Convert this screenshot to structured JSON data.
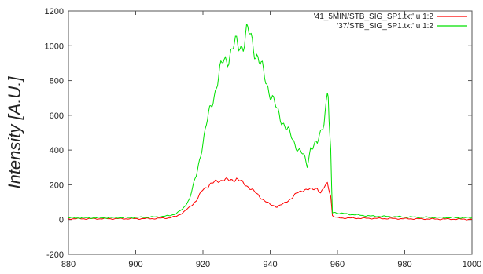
{
  "chart_data": {
    "type": "line",
    "title": "",
    "xlabel": "",
    "ylabel": "Intensity  [A.U.]",
    "xlim": [
      880,
      1000
    ],
    "ylim": [
      -200,
      1200
    ],
    "xticks": [
      "880",
      "900",
      "920",
      "940",
      "960",
      "980",
      "1000"
    ],
    "yticks": [
      "-200",
      "0",
      "200",
      "400",
      "600",
      "800",
      "1000",
      "1200"
    ],
    "legend_position": "top-right",
    "grid": false,
    "series": [
      {
        "name": "'41_5MIN/STB_SIG_SP1.txt' u 1:2",
        "color": "#ff0000",
        "points": [
          [
            880,
            5
          ],
          [
            890,
            5
          ],
          [
            900,
            5
          ],
          [
            906,
            6
          ],
          [
            910,
            10
          ],
          [
            912,
            18
          ],
          [
            914,
            40
          ],
          [
            916,
            70
          ],
          [
            918,
            110
          ],
          [
            920,
            170
          ],
          [
            922,
            205
          ],
          [
            924,
            215
          ],
          [
            926,
            235
          ],
          [
            928,
            220
          ],
          [
            930,
            240
          ],
          [
            932,
            205
          ],
          [
            934,
            185
          ],
          [
            936,
            145
          ],
          [
            938,
            115
          ],
          [
            940,
            85
          ],
          [
            942,
            75
          ],
          [
            944,
            90
          ],
          [
            946,
            120
          ],
          [
            948,
            150
          ],
          [
            950,
            175
          ],
          [
            952,
            170
          ],
          [
            954,
            185
          ],
          [
            955,
            150
          ],
          [
            956,
            180
          ],
          [
            957,
            210
          ],
          [
            958,
            140
          ],
          [
            958.5,
            20
          ],
          [
            960,
            10
          ],
          [
            965,
            8
          ],
          [
            970,
            7
          ],
          [
            980,
            5
          ],
          [
            990,
            3
          ],
          [
            1000,
            2
          ]
        ]
      },
      {
        "name": "'37/STB_SIG_SP1.txt' u 1:2",
        "color": "#00e000",
        "points": [
          [
            880,
            10
          ],
          [
            890,
            10
          ],
          [
            900,
            12
          ],
          [
            906,
            15
          ],
          [
            910,
            22
          ],
          [
            912,
            35
          ],
          [
            914,
            60
          ],
          [
            916,
            120
          ],
          [
            918,
            250
          ],
          [
            920,
            450
          ],
          [
            922,
            620
          ],
          [
            924,
            780
          ],
          [
            926,
            900
          ],
          [
            928,
            960
          ],
          [
            930,
            1000
          ],
          [
            932,
            1020
          ],
          [
            933,
            1070
          ],
          [
            934,
            1050
          ],
          [
            936,
            960
          ],
          [
            938,
            830
          ],
          [
            940,
            740
          ],
          [
            942,
            620
          ],
          [
            944,
            560
          ],
          [
            946,
            480
          ],
          [
            948,
            420
          ],
          [
            950,
            360
          ],
          [
            951,
            310
          ],
          [
            952,
            420
          ],
          [
            954,
            430
          ],
          [
            956,
            580
          ],
          [
            957,
            730
          ],
          [
            957.5,
            600
          ],
          [
            958,
            380
          ],
          [
            958.5,
            40
          ],
          [
            960,
            38
          ],
          [
            965,
            28
          ],
          [
            970,
            20
          ],
          [
            980,
            15
          ],
          [
            990,
            12
          ],
          [
            1000,
            10
          ]
        ]
      }
    ]
  }
}
